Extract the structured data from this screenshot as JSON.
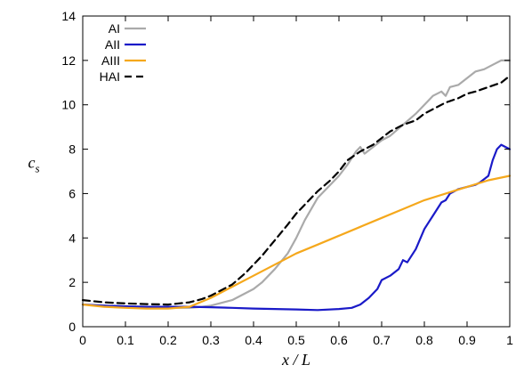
{
  "chart_data": {
    "type": "line",
    "xlabel": "x / L",
    "ylabel_main": "c",
    "ylabel_sub": "s",
    "xlim": [
      0,
      1
    ],
    "ylim": [
      0,
      14
    ],
    "xticks": [
      0,
      0.1,
      0.2,
      0.3,
      0.4,
      0.5,
      0.6,
      0.7,
      0.8,
      0.9,
      1
    ],
    "yticks": [
      0,
      2,
      4,
      6,
      8,
      10,
      12,
      14
    ],
    "grid": false,
    "legend_position": "top-left",
    "series": [
      {
        "name": "AI",
        "color": "#aaaaaa",
        "dash": "solid",
        "x": [
          0,
          0.05,
          0.1,
          0.15,
          0.2,
          0.25,
          0.28,
          0.3,
          0.32,
          0.35,
          0.38,
          0.4,
          0.42,
          0.45,
          0.48,
          0.5,
          0.52,
          0.55,
          0.58,
          0.6,
          0.62,
          0.64,
          0.65,
          0.66,
          0.68,
          0.7,
          0.72,
          0.75,
          0.78,
          0.8,
          0.82,
          0.84,
          0.85,
          0.86,
          0.88,
          0.9,
          0.92,
          0.94,
          0.96,
          0.98,
          1.0
        ],
        "y": [
          1.0,
          0.95,
          0.92,
          0.88,
          0.85,
          0.85,
          0.9,
          0.95,
          1.05,
          1.2,
          1.5,
          1.7,
          2.0,
          2.6,
          3.3,
          4.0,
          4.8,
          5.8,
          6.4,
          6.8,
          7.3,
          7.9,
          8.1,
          7.8,
          8.1,
          8.4,
          8.6,
          9.1,
          9.6,
          10.0,
          10.4,
          10.6,
          10.4,
          10.8,
          10.9,
          11.2,
          11.5,
          11.6,
          11.8,
          12.0,
          12.0
        ]
      },
      {
        "name": "AII",
        "color": "#1a1ac8",
        "dash": "solid",
        "x": [
          0,
          0.05,
          0.1,
          0.15,
          0.2,
          0.25,
          0.3,
          0.35,
          0.4,
          0.45,
          0.5,
          0.55,
          0.6,
          0.63,
          0.65,
          0.67,
          0.69,
          0.7,
          0.72,
          0.74,
          0.75,
          0.76,
          0.78,
          0.8,
          0.81,
          0.82,
          0.84,
          0.85,
          0.86,
          0.88,
          0.9,
          0.92,
          0.93,
          0.95,
          0.96,
          0.97,
          0.98,
          1.0
        ],
        "y": [
          1.0,
          0.95,
          0.92,
          0.9,
          0.9,
          0.9,
          0.88,
          0.85,
          0.82,
          0.8,
          0.78,
          0.75,
          0.8,
          0.85,
          1.0,
          1.3,
          1.7,
          2.1,
          2.3,
          2.6,
          3.0,
          2.9,
          3.5,
          4.4,
          4.7,
          5.0,
          5.6,
          5.7,
          6.0,
          6.2,
          6.3,
          6.4,
          6.5,
          6.8,
          7.5,
          8.0,
          8.2,
          8.0
        ]
      },
      {
        "name": "AIII",
        "color": "#f5a81c",
        "dash": "solid",
        "x": [
          0,
          0.05,
          0.1,
          0.15,
          0.2,
          0.25,
          0.3,
          0.35,
          0.4,
          0.45,
          0.5,
          0.55,
          0.6,
          0.65,
          0.7,
          0.75,
          0.8,
          0.85,
          0.9,
          0.95,
          1.0
        ],
        "y": [
          1.0,
          0.9,
          0.85,
          0.82,
          0.82,
          0.9,
          1.3,
          1.8,
          2.3,
          2.8,
          3.3,
          3.7,
          4.1,
          4.5,
          4.9,
          5.3,
          5.7,
          6.0,
          6.3,
          6.6,
          6.8
        ]
      },
      {
        "name": "HAI",
        "color": "#000000",
        "dash": "dashed",
        "x": [
          0,
          0.05,
          0.1,
          0.15,
          0.2,
          0.25,
          0.28,
          0.3,
          0.32,
          0.35,
          0.38,
          0.4,
          0.42,
          0.45,
          0.48,
          0.5,
          0.52,
          0.55,
          0.58,
          0.6,
          0.62,
          0.65,
          0.68,
          0.7,
          0.72,
          0.75,
          0.78,
          0.8,
          0.82,
          0.85,
          0.88,
          0.9,
          0.92,
          0.95,
          0.98,
          1.0
        ],
        "y": [
          1.2,
          1.1,
          1.05,
          1.02,
          1.0,
          1.1,
          1.25,
          1.4,
          1.6,
          1.9,
          2.4,
          2.8,
          3.2,
          3.9,
          4.6,
          5.1,
          5.5,
          6.1,
          6.6,
          7.0,
          7.5,
          7.9,
          8.2,
          8.5,
          8.8,
          9.1,
          9.3,
          9.6,
          9.8,
          10.1,
          10.3,
          10.5,
          10.6,
          10.8,
          11.0,
          11.3
        ]
      }
    ]
  }
}
